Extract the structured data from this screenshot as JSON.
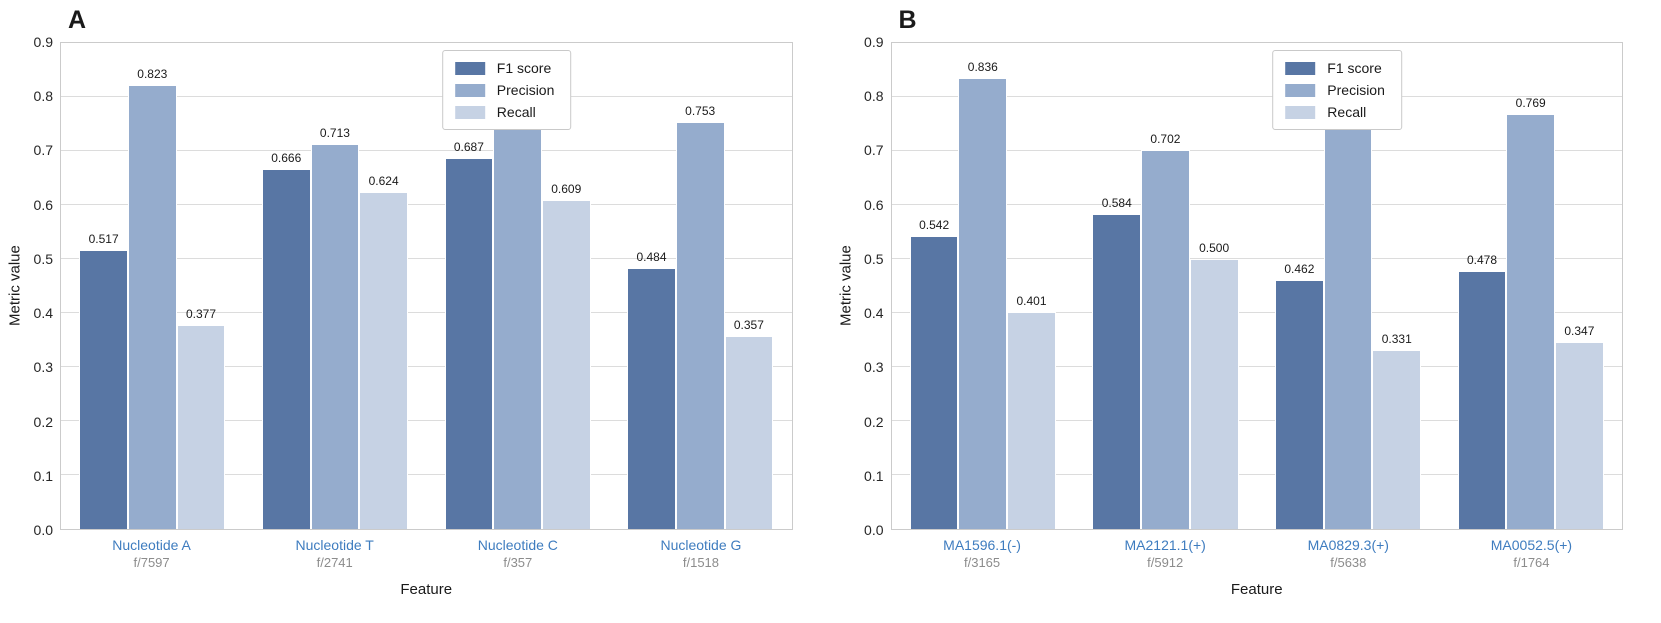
{
  "colors": {
    "background": "#ffffff",
    "axis_border": "#cbcbcb",
    "gridline": "#dcdcdc",
    "tick_text": "#262626",
    "category_label": "#3e7cbf",
    "category_sublabel": "#8c8c8c",
    "f1_color": "#5876a4",
    "precision_color": "#95accd",
    "recall_color": "#c6d2e4"
  },
  "chart_data": [
    {
      "type": "bar",
      "panel": "A",
      "xlabel": "Feature",
      "ylabel": "Metric value",
      "ylim": [
        0.0,
        0.9
      ],
      "ytick_values": [
        0.0,
        0.1,
        0.2,
        0.3,
        0.4,
        0.5,
        0.6,
        0.7,
        0.8,
        0.9
      ],
      "grid": true,
      "legend_position": "upper center",
      "legend": [
        "F1 score",
        "Precision",
        "Recall"
      ],
      "categories": [
        "Nucleotide A",
        "Nucleotide T",
        "Nucleotide C",
        "Nucleotide G"
      ],
      "category_sublabels": [
        "f/7597",
        "f/2741",
        "f/357",
        "f/1518"
      ],
      "series": [
        {
          "name": "F1 score",
          "color": "#5876a4",
          "values": [
            0.517,
            0.666,
            0.687,
            0.484
          ]
        },
        {
          "name": "Precision",
          "color": "#95accd",
          "values": [
            0.823,
            0.713,
            0.787,
            0.753
          ]
        },
        {
          "name": "Recall",
          "color": "#c6d2e4",
          "values": [
            0.377,
            0.624,
            0.609,
            0.357
          ]
        }
      ]
    },
    {
      "type": "bar",
      "panel": "B",
      "xlabel": "Feature",
      "ylabel": "Metric value",
      "ylim": [
        0.0,
        0.9
      ],
      "ytick_values": [
        0.0,
        0.1,
        0.2,
        0.3,
        0.4,
        0.5,
        0.6,
        0.7,
        0.8,
        0.9
      ],
      "grid": true,
      "legend_position": "upper center",
      "legend": [
        "F1 score",
        "Precision",
        "Recall"
      ],
      "categories": [
        "MA1596.1(-)",
        "MA2121.1(+)",
        "MA0829.3(+)",
        "MA0052.5(+)"
      ],
      "category_sublabels": [
        "f/3165",
        "f/5912",
        "f/5638",
        "f/1764"
      ],
      "series": [
        {
          "name": "F1 score",
          "color": "#5876a4",
          "values": [
            0.542,
            0.584,
            0.462,
            0.478
          ]
        },
        {
          "name": "Precision",
          "color": "#95accd",
          "values": [
            0.836,
            0.702,
            0.769,
            0.769
          ]
        },
        {
          "name": "Recall",
          "color": "#c6d2e4",
          "values": [
            0.401,
            0.5,
            0.331,
            0.347
          ]
        }
      ]
    }
  ]
}
